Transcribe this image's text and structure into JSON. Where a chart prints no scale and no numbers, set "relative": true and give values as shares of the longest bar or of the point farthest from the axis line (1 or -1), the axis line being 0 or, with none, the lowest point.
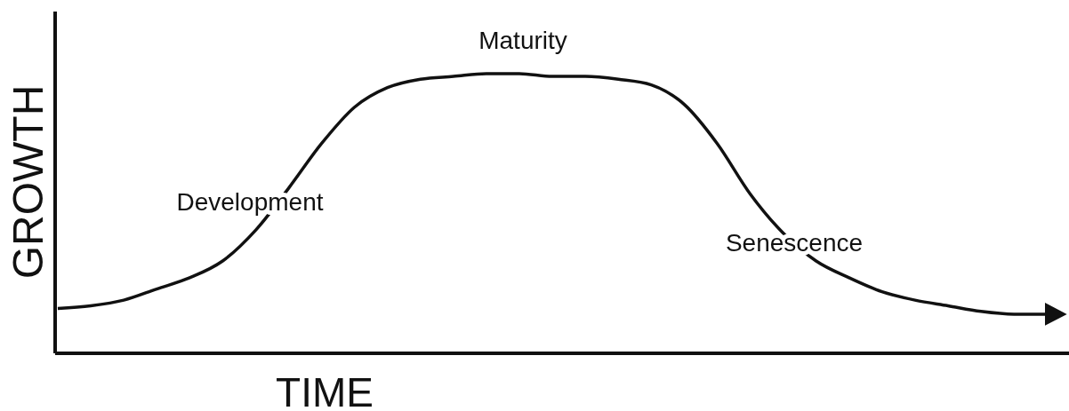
{
  "chart_data": {
    "type": "line",
    "xlabel": "TIME",
    "ylabel": "GROWTH",
    "relative": true,
    "categories": [
      null,
      null,
      null,
      null,
      null,
      null,
      null,
      null,
      null,
      null,
      null,
      null,
      null,
      null,
      null,
      null,
      null,
      null,
      null,
      null,
      null,
      null,
      null,
      null,
      null,
      null,
      null,
      null,
      null,
      null,
      null
    ],
    "values": [
      0.16,
      0.17,
      0.19,
      0.23,
      0.27,
      0.33,
      0.44,
      0.59,
      0.75,
      0.88,
      0.95,
      0.98,
      0.99,
      1,
      1,
      0.99,
      0.99,
      0.98,
      0.96,
      0.89,
      0.75,
      0.57,
      0.43,
      0.33,
      0.27,
      0.22,
      0.19,
      0.17,
      0.15,
      0.14,
      0.14
    ],
    "color": "#111111",
    "annotations": [
      "Development",
      "Maturity",
      "Senescence"
    ]
  }
}
